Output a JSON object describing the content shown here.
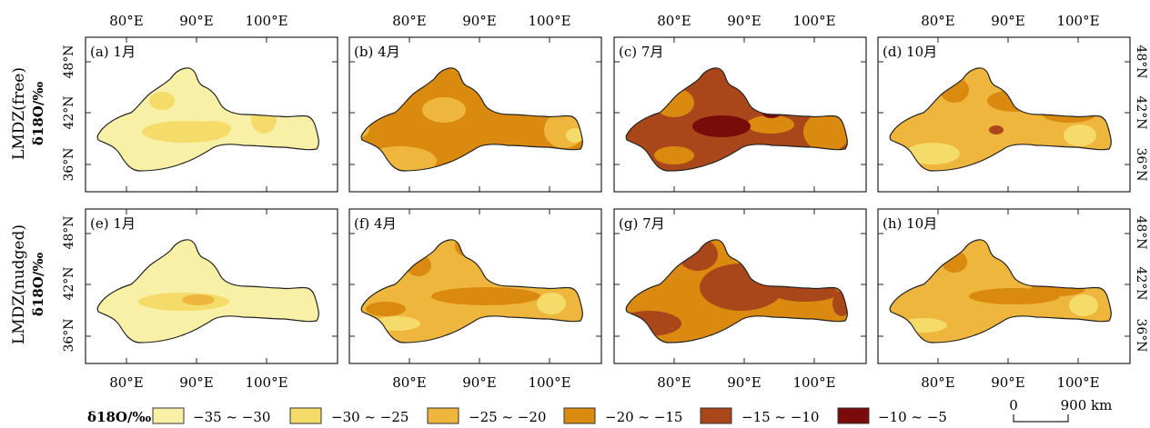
{
  "figure": {
    "top_lon_labels": [
      "80°E",
      "90°E",
      "100°E"
    ],
    "bottom_lon_labels": [
      "80°E",
      "90°E",
      "100°E"
    ],
    "lat_labels": [
      "36°N",
      "42°N",
      "48°N"
    ],
    "rows": [
      {
        "model": "LMDZ(free)",
        "unit": "δ18O/‰"
      },
      {
        "model": "LMDZ(nudged)",
        "unit": "δ18O/‰"
      }
    ],
    "panels": [
      {
        "label": "(a) 1月"
      },
      {
        "label": "(b) 4月"
      },
      {
        "label": "(c) 7月"
      },
      {
        "label": "(d) 10月"
      },
      {
        "label": "(e) 1月"
      },
      {
        "label": "(f) 4月"
      },
      {
        "label": "(g) 7月"
      },
      {
        "label": "(h) 10月"
      }
    ]
  },
  "legend": {
    "title": "δ18O/‰",
    "classes": [
      {
        "label": "−35 ~ −30",
        "color": "#f8f0a6"
      },
      {
        "label": "−30 ~ −25",
        "color": "#f5dc6a"
      },
      {
        "label": "−25 ~ −20",
        "color": "#eeb63d"
      },
      {
        "label": "−20 ~ −15",
        "color": "#d98a0f"
      },
      {
        "label": "−15 ~ −10",
        "color": "#a9471a"
      },
      {
        "label": "−10 ~ −5",
        "color": "#7a0b0b"
      }
    ]
  },
  "scale_bar": {
    "zero": "0",
    "distance": "900 km"
  }
}
